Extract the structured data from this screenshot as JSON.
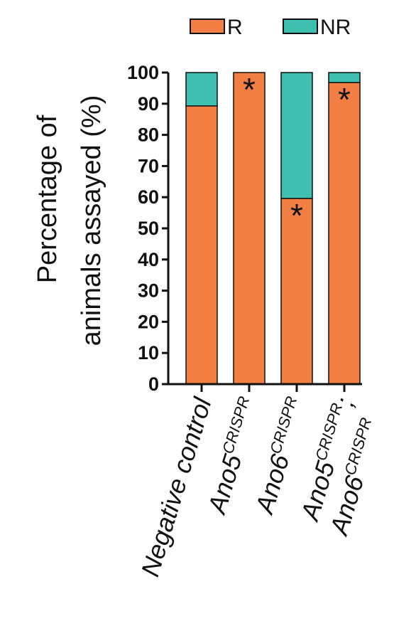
{
  "chart_data": {
    "type": "bar",
    "stacked": true,
    "ylabel_line1": "Percentage of",
    "ylabel_line2": "animals assayed (%)",
    "xlabel": "",
    "ylim": [
      0,
      100
    ],
    "yticks": [
      0,
      10,
      20,
      30,
      40,
      50,
      60,
      70,
      80,
      90,
      100
    ],
    "legend_position": "top",
    "categories": [
      {
        "line1_base": "Negative control",
        "line1_sup": "",
        "line1_suffix": "",
        "line2_base": "",
        "line2_sup": ""
      },
      {
        "line1_base": "Ano5",
        "line1_sup": "CRISPR",
        "line1_suffix": "",
        "line2_base": "",
        "line2_sup": ""
      },
      {
        "line1_base": "Ano6",
        "line1_sup": "CRISPR",
        "line1_suffix": "",
        "line2_base": "",
        "line2_sup": ""
      },
      {
        "line1_base": "Ano5",
        "line1_sup": "CRISPR",
        "line1_suffix": ";",
        "line2_base": "Ano6",
        "line2_sup": "CRISPR"
      }
    ],
    "series": [
      {
        "name": "R",
        "color": "#f47f45",
        "values": [
          89.3,
          100,
          59.6,
          96.8
        ]
      },
      {
        "name": "NR",
        "color": "#3ebfb0",
        "values": [
          10.7,
          0,
          40.4,
          3.2
        ]
      }
    ],
    "significance": [
      "",
      "*",
      "*",
      "*"
    ]
  }
}
